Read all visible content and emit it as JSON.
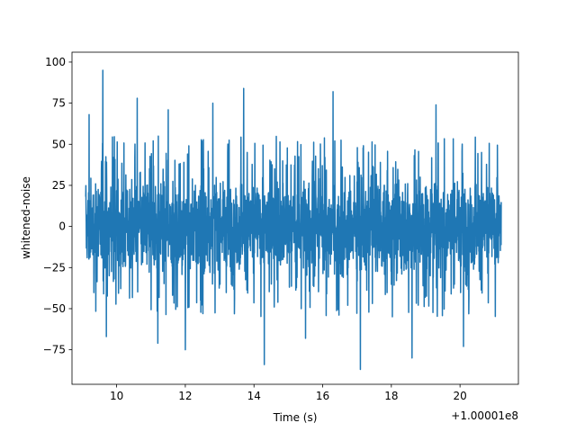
{
  "chart_data": {
    "type": "line",
    "xlabel": "Time (s)",
    "ylabel": "whitened-noise",
    "x_offset_label": "+1.00001e8",
    "xlim": [
      8.7,
      21.7
    ],
    "ylim": [
      -96,
      106
    ],
    "x_ticks": [
      10,
      12,
      14,
      16,
      18,
      20
    ],
    "x_tick_labels": [
      "10",
      "12",
      "14",
      "16",
      "18",
      "20"
    ],
    "y_ticks": [
      -75,
      -50,
      -25,
      0,
      25,
      50,
      75,
      100
    ],
    "y_tick_labels": [
      "−75",
      "−50",
      "−25",
      "0",
      "25",
      "50",
      "75",
      "100"
    ],
    "grid": false,
    "series": [
      {
        "color": "#1f77b4",
        "x_range": [
          9.1,
          21.2
        ],
        "baseline_range": [
          -35,
          35
        ],
        "peaks": [
          {
            "x": 9.6,
            "y": 95
          },
          {
            "x": 9.2,
            "y": 68
          },
          {
            "x": 10.6,
            "y": 78
          },
          {
            "x": 11.5,
            "y": 71
          },
          {
            "x": 12.8,
            "y": 75
          },
          {
            "x": 13.7,
            "y": 84
          },
          {
            "x": 16.3,
            "y": 82
          },
          {
            "x": 19.3,
            "y": 74
          },
          {
            "x": 9.7,
            "y": -67
          },
          {
            "x": 11.2,
            "y": -71
          },
          {
            "x": 12.0,
            "y": -75
          },
          {
            "x": 14.3,
            "y": -84
          },
          {
            "x": 15.5,
            "y": -68
          },
          {
            "x": 17.1,
            "y": -87
          },
          {
            "x": 18.6,
            "y": -80
          },
          {
            "x": 20.1,
            "y": -73
          }
        ]
      }
    ]
  }
}
